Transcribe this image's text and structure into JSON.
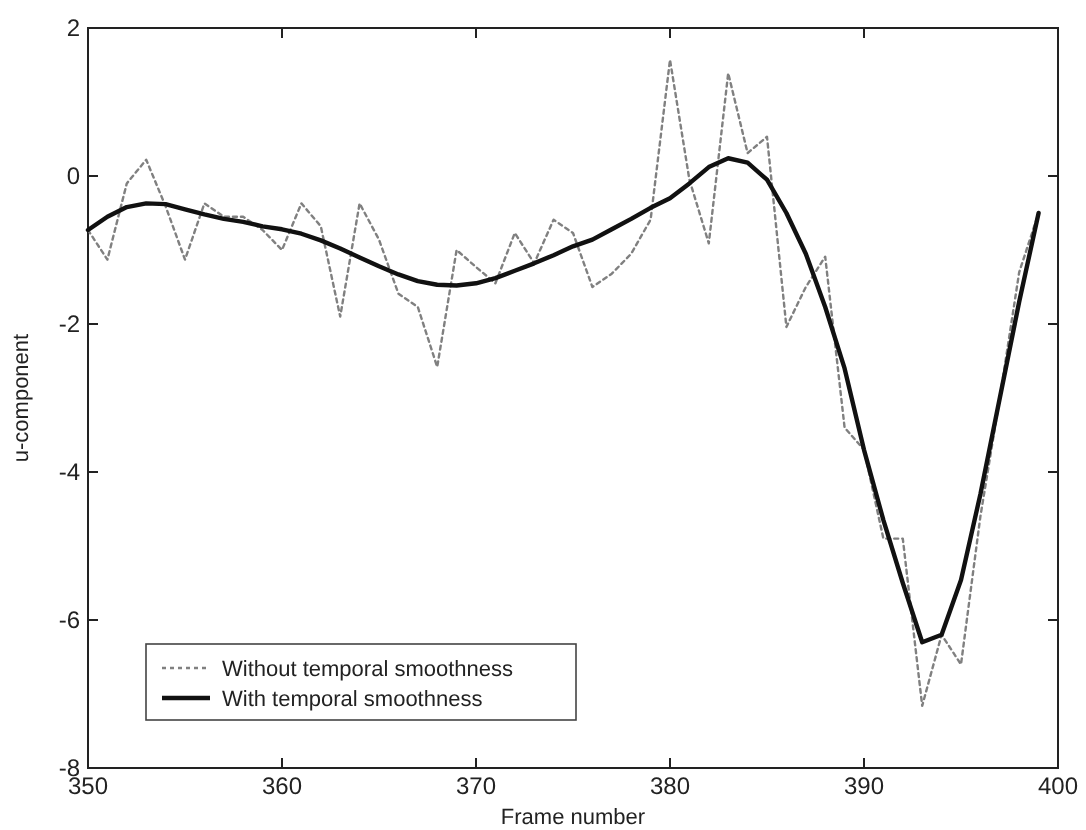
{
  "chart_data": {
    "type": "line",
    "xlabel": "Frame number",
    "ylabel": "u-component",
    "x": [
      350,
      351,
      352,
      353,
      354,
      355,
      356,
      357,
      358,
      359,
      360,
      361,
      362,
      363,
      364,
      365,
      366,
      367,
      368,
      369,
      370,
      371,
      372,
      373,
      374,
      375,
      376,
      377,
      378,
      379,
      380,
      381,
      382,
      383,
      384,
      385,
      386,
      387,
      388,
      389,
      390,
      391,
      392,
      393,
      394,
      395,
      396,
      397,
      398,
      399
    ],
    "series": [
      {
        "name": "Without temporal smoothness",
        "color": "#808080",
        "line_style": "dotted",
        "values": [
          -0.73,
          -1.13,
          -0.1,
          0.22,
          -0.41,
          -1.13,
          -0.37,
          -0.55,
          -0.55,
          -0.73,
          -1.0,
          -0.37,
          -0.68,
          -1.9,
          -0.37,
          -0.86,
          -1.59,
          -1.77,
          -2.58,
          -1.0,
          -1.23,
          -1.45,
          -0.77,
          -1.18,
          -0.59,
          -0.77,
          -1.5,
          -1.32,
          -1.05,
          -0.59,
          1.57,
          -0.05,
          -0.91,
          1.39,
          0.31,
          0.53,
          -2.04,
          -1.5,
          -1.09,
          -3.4,
          -3.7,
          -4.9,
          -4.9,
          -7.16,
          -6.2,
          -6.6,
          -4.6,
          -3.0,
          -1.3,
          -0.5
        ]
      },
      {
        "name": "With temporal smoothness",
        "color": "#111111",
        "line_style": "solid",
        "values": [
          -0.73,
          -0.55,
          -0.42,
          -0.37,
          -0.38,
          -0.45,
          -0.52,
          -0.58,
          -0.62,
          -0.68,
          -0.72,
          -0.78,
          -0.87,
          -0.98,
          -1.1,
          -1.22,
          -1.33,
          -1.42,
          -1.47,
          -1.48,
          -1.45,
          -1.38,
          -1.28,
          -1.18,
          -1.07,
          -0.95,
          -0.86,
          -0.72,
          -0.58,
          -0.43,
          -0.3,
          -0.1,
          0.12,
          0.24,
          0.18,
          -0.05,
          -0.5,
          -1.05,
          -1.77,
          -2.6,
          -3.7,
          -4.65,
          -5.5,
          -6.3,
          -6.2,
          -5.46,
          -4.3,
          -3.0,
          -1.7,
          -0.5
        ]
      }
    ],
    "xlim": [
      350,
      400
    ],
    "xticks": [
      350,
      360,
      370,
      380,
      390,
      400
    ],
    "ylim": [
      -8,
      2
    ],
    "yticks": [
      -8,
      -6,
      -4,
      -2,
      0,
      2
    ],
    "grid": false,
    "legend": "bottom left"
  }
}
